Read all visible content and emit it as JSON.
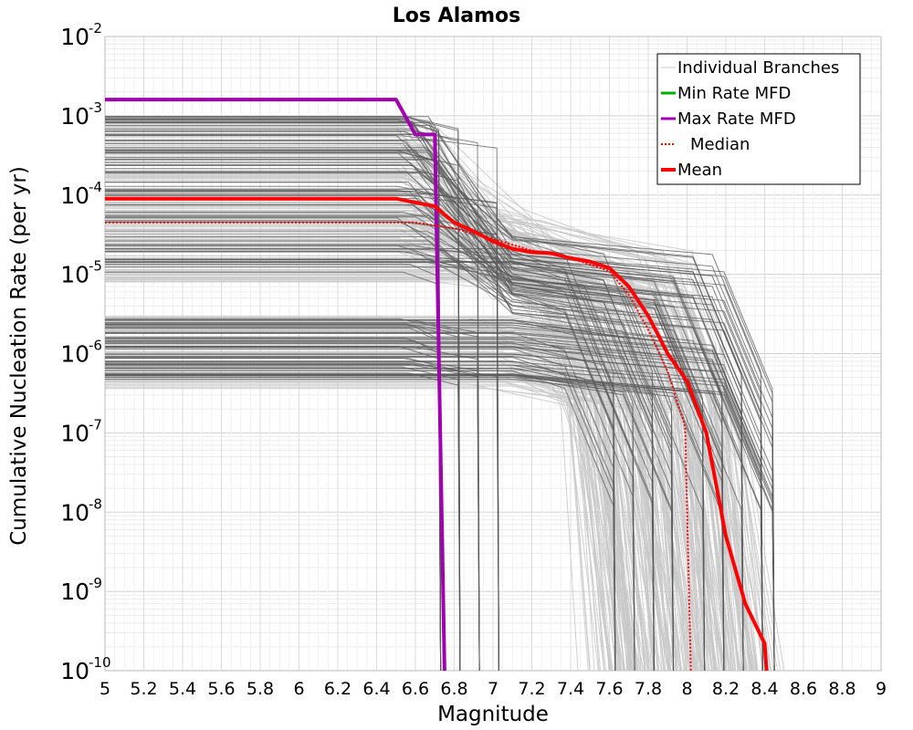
{
  "chart_data": {
    "type": "line",
    "title": "Los Alamos",
    "xlabel": "Magnitude",
    "ylabel": "Cumulative Nucleation Rate (per yr)",
    "xlim": [
      5,
      9
    ],
    "ylim_log10": [
      -10,
      -2
    ],
    "yscale": "log",
    "grid": true,
    "legend_position": "top-right",
    "x_ticks": [
      "5",
      "5.2",
      "5.4",
      "5.6",
      "5.8",
      "6",
      "6.2",
      "6.4",
      "6.6",
      "6.8",
      "7",
      "7.2",
      "7.4",
      "7.6",
      "7.8",
      "8",
      "8.2",
      "8.4",
      "8.6",
      "8.8",
      "9"
    ],
    "y_ticks": [
      {
        "base": "10",
        "exp": "-2"
      },
      {
        "base": "10",
        "exp": "-3"
      },
      {
        "base": "10",
        "exp": "-4"
      },
      {
        "base": "10",
        "exp": "-5"
      },
      {
        "base": "10",
        "exp": "-6"
      },
      {
        "base": "10",
        "exp": "-7"
      },
      {
        "base": "10",
        "exp": "-8"
      },
      {
        "base": "10",
        "exp": "-9"
      },
      {
        "base": "10",
        "exp": "-10"
      }
    ],
    "legend": [
      {
        "label": "Individual Branches",
        "color": "#c8c8c8",
        "style": "solid"
      },
      {
        "label": "Min Rate MFD",
        "color": "#00b000",
        "style": "solid"
      },
      {
        "label": "Max Rate MFD",
        "color": "#a000b0",
        "style": "solid"
      },
      {
        "label": "Median",
        "color": "#ff0000",
        "style": "dotted"
      },
      {
        "label": "Mean",
        "color": "#ff0000",
        "style": "solid"
      }
    ],
    "series": [
      {
        "name": "Max Rate MFD",
        "color": "#a000b0",
        "points": [
          [
            5,
            0.0016
          ],
          [
            6.5,
            0.0016
          ],
          [
            6.6,
            0.00058
          ],
          [
            6.7,
            0.00058
          ],
          [
            6.75,
            1e-10
          ]
        ]
      },
      {
        "name": "Mean",
        "color": "#ff0000",
        "points": [
          [
            5,
            9e-05
          ],
          [
            6.5,
            9e-05
          ],
          [
            6.7,
            7.2e-05
          ],
          [
            6.8,
            4.5e-05
          ],
          [
            6.9,
            3.5e-05
          ],
          [
            7,
            2.6e-05
          ],
          [
            7.1,
            2.1e-05
          ],
          [
            7.2,
            1.9e-05
          ],
          [
            7.3,
            1.85e-05
          ],
          [
            7.4,
            1.6e-05
          ],
          [
            7.5,
            1.45e-05
          ],
          [
            7.6,
            1.2e-05
          ],
          [
            7.7,
            7e-06
          ],
          [
            7.8,
            3e-06
          ],
          [
            7.9,
            1e-06
          ],
          [
            8,
            4.5e-07
          ],
          [
            8.1,
            1e-07
          ],
          [
            8.2,
            5e-09
          ],
          [
            8.3,
            7e-10
          ],
          [
            8.4,
            2.2e-10
          ],
          [
            8.41,
            1e-10
          ]
        ]
      },
      {
        "name": "Median",
        "color": "#ff0000",
        "dashed": true,
        "points": [
          [
            5,
            4.5e-05
          ],
          [
            6.6,
            4.5e-05
          ],
          [
            6.8,
            3.8e-05
          ],
          [
            7,
            2.8e-05
          ],
          [
            7.2,
            2e-05
          ],
          [
            7.4,
            1.6e-05
          ],
          [
            7.6,
            1.1e-05
          ],
          [
            7.7,
            5.5e-06
          ],
          [
            7.8,
            2e-06
          ],
          [
            7.9,
            6e-07
          ],
          [
            7.99,
            1.2e-07
          ],
          [
            8.02,
            1e-10
          ]
        ]
      }
    ],
    "branches_description": "hundreds of gray logic-tree branch curves between ~3e-7 and ~1e-3 at low magnitude, dropping to 1e-10 between M6.7 and M8.45"
  }
}
